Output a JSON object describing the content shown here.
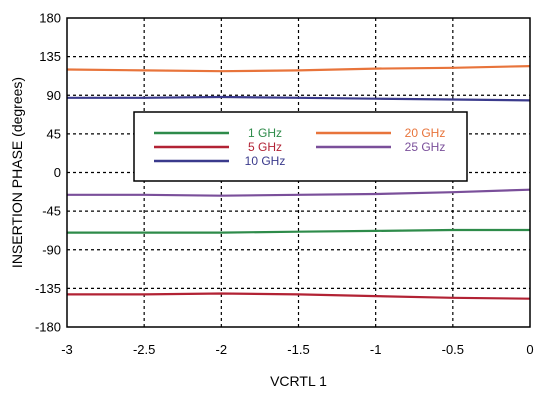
{
  "chart_data": {
    "type": "line",
    "xlabel": "VCRTL 1",
    "ylabel": "INSERTION PHASE (degrees)",
    "xlim": [
      -3,
      0
    ],
    "ylim": [
      -180,
      180
    ],
    "x_ticks": [
      -3,
      -2.5,
      -2,
      -1.5,
      -1,
      -0.5,
      0
    ],
    "x_tick_labels": [
      "-3",
      "-2.5",
      "-2",
      "-1.5",
      "-1",
      "-0.5",
      "0"
    ],
    "y_ticks": [
      -180,
      -135,
      -90,
      -45,
      0,
      45,
      90,
      135,
      180
    ],
    "y_tick_labels": [
      "-180",
      "-135",
      "-90",
      "-45",
      "0",
      "45",
      "90",
      "135",
      "180"
    ],
    "grid": true,
    "legend_position": "center",
    "series": [
      {
        "name": "1 GHz",
        "color": "#2e8b4a",
        "x": [
          -3,
          -2.5,
          -2,
          -1.5,
          -1,
          -0.5,
          0
        ],
        "y": [
          -70,
          -70,
          -70,
          -69,
          -68,
          -67,
          -67
        ]
      },
      {
        "name": "5 GHz",
        "color": "#b22234",
        "x": [
          -3,
          -2.5,
          -2,
          -1.5,
          -1,
          -0.5,
          0
        ],
        "y": [
          -142,
          -142,
          -141,
          -142,
          -144,
          -146,
          -147
        ]
      },
      {
        "name": "10 GHz",
        "color": "#3a3a8c",
        "x": [
          -3,
          -2.5,
          -2,
          -1.5,
          -1,
          -0.5,
          0
        ],
        "y": [
          87,
          87,
          88,
          87,
          86,
          85,
          84
        ]
      },
      {
        "name": "20 GHz",
        "color": "#e8743b",
        "x": [
          -3,
          -2.5,
          -2,
          -1.5,
          -1,
          -0.5,
          0
        ],
        "y": [
          120,
          119,
          118,
          119,
          121,
          122,
          124
        ]
      },
      {
        "name": "25 GHz",
        "color": "#7a4f9a",
        "x": [
          -3,
          -2.5,
          -2,
          -1.5,
          -1,
          -0.5,
          0
        ],
        "y": [
          -26,
          -26,
          -27,
          -26,
          -25,
          -23,
          -20
        ]
      }
    ]
  }
}
